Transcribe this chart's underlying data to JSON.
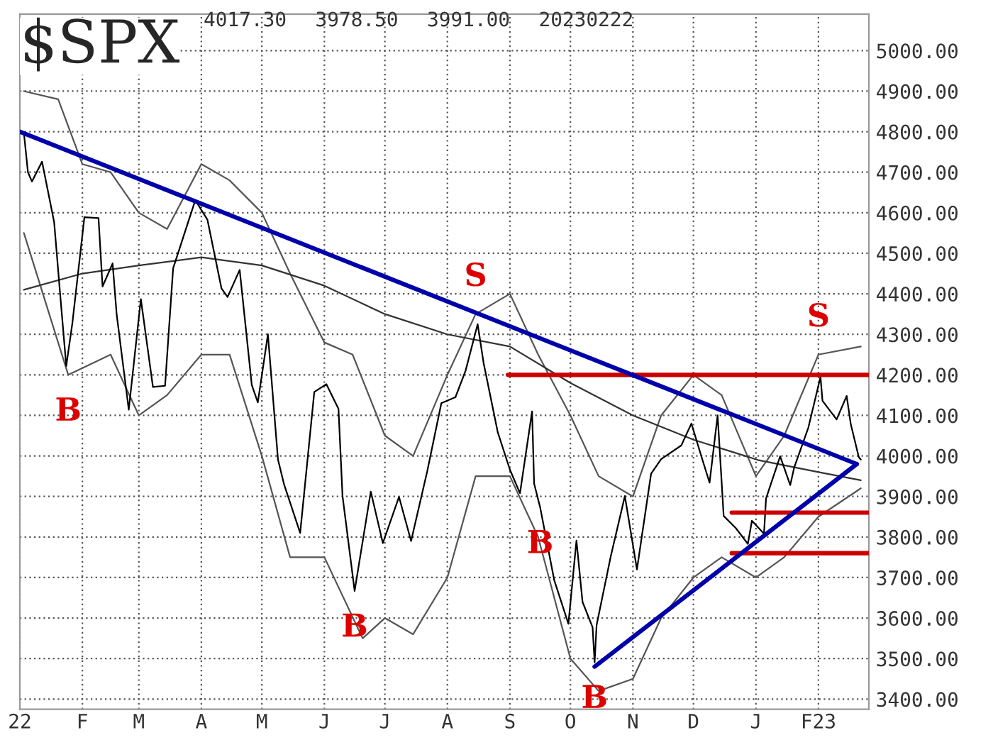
{
  "chart_data": {
    "type": "line",
    "title": "$SPX",
    "annotations": [
      "4017.30",
      "3978.50",
      "3991.00",
      "20230222",
      {
        "text": "B",
        "x": "2022-01-25",
        "y": 4200
      },
      {
        "text": "B",
        "x": "2022-06-16",
        "y": 3667
      },
      {
        "text": "S",
        "x": "2022-08-15",
        "y": 4350
      },
      {
        "text": "B",
        "x": "2022-09-16",
        "y": 3873
      },
      {
        "text": "B",
        "x": "2022-10-13",
        "y": 3491
      },
      {
        "text": "S",
        "x": "2023-02-01",
        "y": 4250
      }
    ],
    "xlim": [
      "2022-01-01",
      "2023-02-26"
    ],
    "xticks": [
      {
        "value": "2022-01-01",
        "label": "22"
      },
      {
        "value": "2022-02-01",
        "label": "F"
      },
      {
        "value": "2022-03-01",
        "label": "M"
      },
      {
        "value": "2022-04-01",
        "label": "A"
      },
      {
        "value": "2022-05-01",
        "label": "M"
      },
      {
        "value": "2022-06-01",
        "label": "J"
      },
      {
        "value": "2022-07-01",
        "label": "J"
      },
      {
        "value": "2022-08-01",
        "label": "A"
      },
      {
        "value": "2022-09-01",
        "label": "S"
      },
      {
        "value": "2022-10-01",
        "label": "O"
      },
      {
        "value": "2022-11-01",
        "label": "N"
      },
      {
        "value": "2022-12-01",
        "label": "D"
      },
      {
        "value": "2023-01-01",
        "label": "J"
      },
      {
        "value": "2023-02-01",
        "label": "F23"
      }
    ],
    "ylim": [
      3375,
      5090
    ],
    "yticks": [
      {
        "value": 3400,
        "label": "3400.00"
      },
      {
        "value": 3500,
        "label": "3500.00"
      },
      {
        "value": 3600,
        "label": "3600.00"
      },
      {
        "value": 3700,
        "label": "3700.00"
      },
      {
        "value": 3800,
        "label": "3800.00"
      },
      {
        "value": 3900,
        "label": "3900.00"
      },
      {
        "value": 4000,
        "label": "4000.00"
      },
      {
        "value": 4100,
        "label": "4100.00"
      },
      {
        "value": 4200,
        "label": "4200.00"
      },
      {
        "value": 4300,
        "label": "4300.00"
      },
      {
        "value": 4400,
        "label": "4400.00"
      },
      {
        "value": 4500,
        "label": "4500.00"
      },
      {
        "value": 4600,
        "label": "4600.00"
      },
      {
        "value": 4700,
        "label": "4700.00"
      },
      {
        "value": 4800,
        "label": "4800.00"
      },
      {
        "value": 4900,
        "label": "4900.00"
      },
      {
        "value": 5000,
        "label": "5000.00"
      }
    ],
    "grid": true,
    "marker": "none",
    "series": [
      {
        "color": "#555555",
        "x": [
          "2022-01-03",
          "2022-01-20",
          "2022-02-01",
          "2022-02-15",
          "2022-03-01",
          "2022-03-15",
          "2022-04-01",
          "2022-04-15",
          "2022-05-01",
          "2022-05-15",
          "2022-06-01",
          "2022-06-15",
          "2022-07-01",
          "2022-07-15",
          "2022-08-01",
          "2022-08-15",
          "2022-09-01",
          "2022-09-15",
          "2022-10-01",
          "2022-10-15",
          "2022-11-01",
          "2022-11-15",
          "2022-12-01",
          "2022-12-15",
          "2023-01-01",
          "2023-01-15",
          "2023-02-01",
          "2023-02-22"
        ],
        "values": [
          4900,
          4880,
          4720,
          4700,
          4600,
          4560,
          4720,
          4680,
          4600,
          4450,
          4280,
          4250,
          4050,
          4000,
          4200,
          4350,
          4400,
          4250,
          4100,
          3950,
          3900,
          4100,
          4200,
          4150,
          3950,
          4050,
          4250,
          4270
        ]
      },
      {
        "color": "#555555",
        "x": [
          "2022-01-03",
          "2022-01-25",
          "2022-02-15",
          "2022-03-01",
          "2022-03-15",
          "2022-04-01",
          "2022-04-15",
          "2022-05-01",
          "2022-05-15",
          "2022-06-01",
          "2022-06-20",
          "2022-07-01",
          "2022-07-15",
          "2022-08-01",
          "2022-08-15",
          "2022-09-01",
          "2022-09-15",
          "2022-10-01",
          "2022-10-15",
          "2022-11-01",
          "2022-11-15",
          "2022-12-01",
          "2022-12-15",
          "2023-01-01",
          "2023-01-15",
          "2023-02-01",
          "2023-02-22"
        ],
        "values": [
          4550,
          4200,
          4250,
          4100,
          4150,
          4250,
          4250,
          4000,
          3750,
          3750,
          3550,
          3600,
          3560,
          3700,
          3950,
          3950,
          3800,
          3500,
          3420,
          3450,
          3600,
          3700,
          3750,
          3700,
          3750,
          3850,
          3920
        ]
      },
      {
        "color": "#333333",
        "x": [
          "2022-01-03",
          "2022-02-01",
          "2022-03-01",
          "2022-04-01",
          "2022-05-01",
          "2022-06-01",
          "2022-07-01",
          "2022-08-01",
          "2022-09-01",
          "2022-10-01",
          "2022-11-01",
          "2022-12-01",
          "2023-01-02",
          "2023-02-01",
          "2023-02-22"
        ],
        "values": [
          4410,
          4450,
          4470,
          4490,
          4470,
          4420,
          4350,
          4300,
          4270,
          4180,
          4100,
          4040,
          3990,
          3960,
          3940
        ]
      },
      {
        "color": "#000000",
        "x": [
          "2022-01-03",
          "2022-01-05",
          "2022-01-07",
          "2022-01-12",
          "2022-01-18",
          "2022-01-21",
          "2022-01-24",
          "2022-01-27",
          "2022-02-02",
          "2022-02-09",
          "2022-02-11",
          "2022-02-16",
          "2022-02-18",
          "2022-02-24",
          "2022-03-02",
          "2022-03-08",
          "2022-03-14",
          "2022-03-18",
          "2022-03-29",
          "2022-04-04",
          "2022-04-11",
          "2022-04-14",
          "2022-04-20",
          "2022-04-26",
          "2022-04-29",
          "2022-05-04",
          "2022-05-09",
          "2022-05-12",
          "2022-05-20",
          "2022-05-27",
          "2022-06-02",
          "2022-06-08",
          "2022-06-10",
          "2022-06-16",
          "2022-06-24",
          "2022-06-30",
          "2022-07-08",
          "2022-07-14",
          "2022-07-22",
          "2022-07-29",
          "2022-08-05",
          "2022-08-10",
          "2022-08-16",
          "2022-08-19",
          "2022-08-26",
          "2022-09-01",
          "2022-09-06",
          "2022-09-12",
          "2022-09-13",
          "2022-09-16",
          "2022-09-23",
          "2022-09-30",
          "2022-10-04",
          "2022-10-07",
          "2022-10-12",
          "2022-10-13",
          "2022-10-14",
          "2022-10-21",
          "2022-10-28",
          "2022-11-03",
          "2022-11-10",
          "2022-11-15",
          "2022-11-25",
          "2022-11-30",
          "2022-12-05",
          "2022-12-09",
          "2022-12-13",
          "2022-12-16",
          "2022-12-22",
          "2022-12-28",
          "2022-12-30",
          "2023-01-05",
          "2023-01-06",
          "2023-01-13",
          "2023-01-18",
          "2023-01-20",
          "2023-01-27",
          "2023-02-02",
          "2023-02-03",
          "2023-02-10",
          "2023-02-15",
          "2023-02-17",
          "2023-02-21",
          "2023-02-22"
        ],
        "values": [
          4797,
          4700,
          4677,
          4726,
          4577,
          4398,
          4222,
          4326,
          4589,
          4587,
          4418,
          4475,
          4349,
          4114,
          4387,
          4170,
          4173,
          4463,
          4631,
          4583,
          4413,
          4392,
          4459,
          4175,
          4132,
          4300,
          3991,
          3930,
          3810,
          4158,
          4177,
          4116,
          3901,
          3667,
          3912,
          3785,
          3899,
          3790,
          3962,
          4130,
          4145,
          4210,
          4325,
          4228,
          4058,
          3966,
          3908,
          4110,
          3932,
          3873,
          3693,
          3586,
          3791,
          3640,
          3577,
          3491,
          3583,
          3752,
          3901,
          3720,
          3956,
          3992,
          4026,
          4080,
          3998,
          3934,
          4100,
          3852,
          3822,
          3783,
          3840,
          3808,
          3895,
          3999,
          3928,
          3972,
          4070,
          4195,
          4136,
          4090,
          4148,
          4079,
          3997,
          3991
        ]
      },
      {
        "color": "#cc0000",
        "x": [
          "2022-08-31",
          "2023-02-26"
        ],
        "values": [
          4200,
          4200
        ]
      },
      {
        "color": "#cc0000",
        "x": [
          "2022-12-20",
          "2023-02-26"
        ],
        "values": [
          3860,
          3860
        ]
      },
      {
        "color": "#cc0000",
        "x": [
          "2022-12-20",
          "2023-02-26"
        ],
        "values": [
          3760,
          3760
        ]
      },
      {
        "color": "#0000aa",
        "x": [
          "2022-01-01",
          "2023-02-20"
        ],
        "values": [
          4800,
          3980
        ]
      },
      {
        "color": "#0000aa",
        "x": [
          "2022-10-13",
          "2023-02-20"
        ],
        "values": [
          3480,
          3980
        ]
      }
    ]
  }
}
